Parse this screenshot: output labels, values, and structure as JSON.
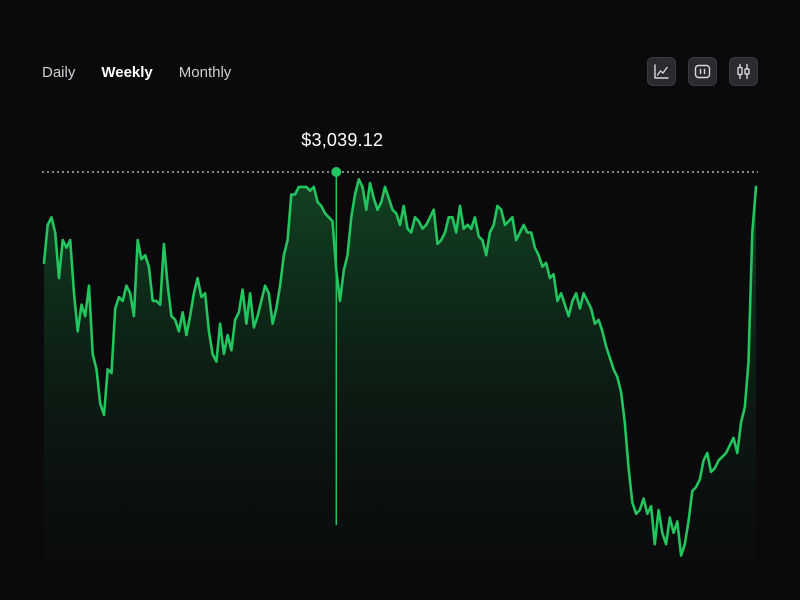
{
  "tabs": [
    {
      "label": "Daily",
      "active": false
    },
    {
      "label": "Weekly",
      "active": true
    },
    {
      "label": "Monthly",
      "active": false
    }
  ],
  "toolbar": {
    "icons": [
      "line-chart-icon",
      "bar-chart-icon",
      "candlestick-chart-icon"
    ]
  },
  "tooltip": {
    "price_label": "$3,039.12"
  },
  "colors": {
    "background": "#0a0a0c",
    "line": "#22c55e",
    "fill": "#0f3a1e",
    "marker": "#22c55e",
    "reference_line": "#cfcfd3"
  },
  "chart_data": {
    "type": "area",
    "title": "",
    "xlabel": "",
    "ylabel": "",
    "grid": false,
    "ylim": [
      2000,
      3200
    ],
    "reference_value": 3039.12,
    "marker_index": 78,
    "values": [
      2800,
      2900,
      2920,
      2880,
      2760,
      2860,
      2840,
      2860,
      2720,
      2620,
      2690,
      2660,
      2740,
      2560,
      2520,
      2430,
      2400,
      2520,
      2510,
      2680,
      2710,
      2700,
      2740,
      2720,
      2660,
      2860,
      2810,
      2820,
      2790,
      2700,
      2700,
      2690,
      2850,
      2740,
      2660,
      2650,
      2620,
      2670,
      2610,
      2660,
      2720,
      2760,
      2710,
      2720,
      2620,
      2560,
      2540,
      2640,
      2560,
      2610,
      2570,
      2650,
      2670,
      2730,
      2640,
      2720,
      2630,
      2660,
      2700,
      2740,
      2720,
      2640,
      2680,
      2740,
      2820,
      2860,
      2980,
      2980,
      3000,
      3000,
      3000,
      2990,
      3000,
      2960,
      2950,
      2930,
      2920,
      2910,
      2780,
      2700,
      2780,
      2820,
      2920,
      2980,
      3020,
      3000,
      2940,
      3010,
      2970,
      2940,
      2960,
      3000,
      2970,
      2940,
      2930,
      2900,
      2950,
      2890,
      2880,
      2920,
      2910,
      2890,
      2900,
      2920,
      2940,
      2850,
      2860,
      2880,
      2920,
      2920,
      2880,
      2950,
      2890,
      2900,
      2890,
      2920,
      2870,
      2860,
      2820,
      2880,
      2900,
      2950,
      2940,
      2900,
      2910,
      2920,
      2860,
      2880,
      2900,
      2880,
      2880,
      2840,
      2820,
      2790,
      2800,
      2760,
      2770,
      2700,
      2720,
      2690,
      2660,
      2700,
      2720,
      2680,
      2720,
      2700,
      2680,
      2640,
      2650,
      2620,
      2580,
      2550,
      2520,
      2500,
      2460,
      2380,
      2260,
      2170,
      2140,
      2150,
      2180,
      2140,
      2160,
      2060,
      2150,
      2090,
      2060,
      2130,
      2090,
      2120,
      2030,
      2060,
      2120,
      2200,
      2210,
      2230,
      2280,
      2300,
      2250,
      2260,
      2280,
      2290,
      2300,
      2320,
      2340,
      2300,
      2380,
      2420,
      2540,
      2880,
      3000
    ]
  }
}
